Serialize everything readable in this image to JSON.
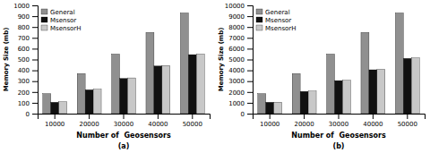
{
  "chart_data": [
    {
      "type": "bar",
      "xlabel": "Number of  Geosensors",
      "ylabel": "Memory Size (mb)",
      "annotations": [
        "(a)"
      ],
      "categories": [
        "10000",
        "20000",
        "30000",
        "40000",
        "50000"
      ],
      "series": [
        {
          "name": "General",
          "color": "#909090",
          "values": [
            185,
            370,
            550,
            750,
            930
          ]
        },
        {
          "name": "Msensor",
          "color": "#111111",
          "values": [
            105,
            220,
            325,
            440,
            545
          ]
        },
        {
          "name": "MsensorH",
          "color": "#c8c8c8",
          "values": [
            110,
            225,
            330,
            445,
            550
          ]
        }
      ],
      "ylim": [
        0,
        1000
      ],
      "yticks": [
        0,
        100,
        200,
        300,
        400,
        500,
        600,
        700,
        800,
        900,
        1000
      ],
      "legend": "upper left",
      "grid": false
    },
    {
      "type": "bar",
      "xlabel": "Number of  Geosensors",
      "ylabel": "Memory Size (mb)",
      "annotations": [
        "(b)"
      ],
      "categories": [
        "10000",
        "20000",
        "30000",
        "40000",
        "50000"
      ],
      "series": [
        {
          "name": "General",
          "color": "#909090",
          "values": [
            1850,
            3700,
            5500,
            7500,
            9300
          ]
        },
        {
          "name": "Msensor",
          "color": "#111111",
          "values": [
            1050,
            2050,
            3050,
            4050,
            5100
          ]
        },
        {
          "name": "MsensorH",
          "color": "#c8c8c8",
          "values": [
            1060,
            2080,
            3080,
            4100,
            5150
          ]
        }
      ],
      "ylim": [
        0,
        10000
      ],
      "yticks": [
        0,
        1000,
        2000,
        3000,
        4000,
        5000,
        6000,
        7000,
        8000,
        9000,
        10000
      ],
      "legend": "upper left",
      "grid": false
    }
  ]
}
